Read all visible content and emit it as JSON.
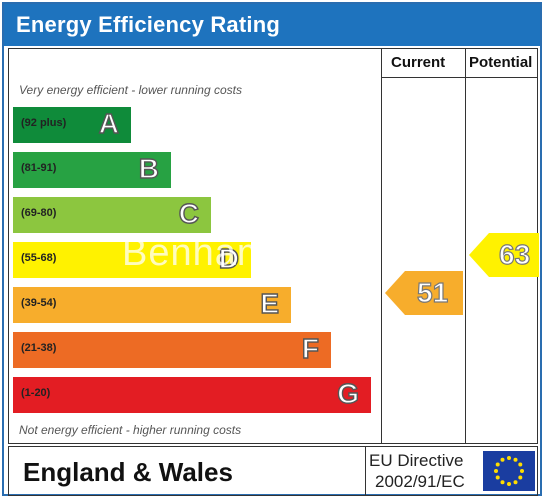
{
  "title": "Energy Efficiency Rating",
  "columns": {
    "current": "Current",
    "potential": "Potential"
  },
  "notes": {
    "top": "Very energy efficient - lower running costs",
    "bottom": "Not energy efficient - higher running costs"
  },
  "bands": [
    {
      "range": "(92 plus)",
      "letter": "A",
      "color": "#0f8b3a"
    },
    {
      "range": "(81-91)",
      "letter": "B",
      "color": "#27a243"
    },
    {
      "range": "(69-80)",
      "letter": "C",
      "color": "#8cc63f"
    },
    {
      "range": "(55-68)",
      "letter": "D",
      "color": "#fff200"
    },
    {
      "range": "(39-54)",
      "letter": "E",
      "color": "#f7ad2c"
    },
    {
      "range": "(21-38)",
      "letter": "F",
      "color": "#ed6b24"
    },
    {
      "range": "(1-20)",
      "letter": "G",
      "color": "#e31d23"
    }
  ],
  "current": {
    "value": "51",
    "color": "#f7ad2c"
  },
  "potential": {
    "value": "63",
    "color": "#fff200"
  },
  "footer": {
    "region": "England & Wales",
    "directive_line1": "EU Directive",
    "directive_line2": "2002/91/EC"
  },
  "icons": {
    "flag": "eu-flag-icon"
  },
  "watermark": "Benham"
}
